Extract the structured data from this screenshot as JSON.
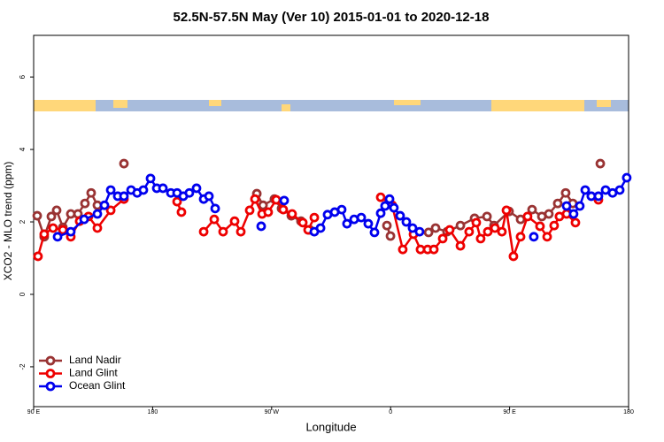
{
  "chart_data": {
    "type": "line",
    "title": "52.5N-57.5N May (Ver 10)   2015-01-01 to 2020-12-18",
    "x_label": "Longitude",
    "y_label": "XCO2 - MLO trend (ppm)",
    "xlim": [
      90,
      540
    ],
    "ylim": [
      -3.1,
      7.15
    ],
    "xticks": [
      {
        "value": 90,
        "label": "90 E"
      },
      180,
      {
        "value": 270,
        "label": "90 W"
      },
      {
        "value": 360,
        "label": "0"
      },
      {
        "value": 450,
        "label": "90 E"
      },
      {
        "value": 540,
        "label": "180"
      }
    ],
    "yticks": [
      -2,
      0,
      2,
      4,
      6
    ],
    "legend": "bottom-left",
    "series": [
      {
        "name": "Land Nadir",
        "color": "#993333",
        "x": [
          92.7,
          98.0,
          103.4,
          107.4,
          112.1,
          118.1,
          123.5,
          128.8,
          133.5,
          138.2,
          null,
          158.3,
          null,
          258.8,
          263.5,
          272.1,
          277.5,
          284.9,
          292.2,
          298.9,
          null,
          357.2,
          359.9,
          null,
          388.7,
          394.0,
          402.7,
          412.8,
          423.5,
          432.9,
          438.2,
          449.6,
          458.3,
          467.0,
          474.4,
          479.7,
          486.4,
          492.4,
          497.8,
          null,
          518.6
        ],
        "values": [
          2.17,
          1.59,
          2.15,
          2.32,
          1.85,
          2.22,
          2.22,
          2.51,
          2.8,
          2.46,
          null,
          3.61,
          null,
          2.78,
          2.46,
          2.63,
          2.37,
          2.17,
          2.02,
          1.78,
          null,
          1.9,
          1.61,
          null,
          1.71,
          1.83,
          1.73,
          1.9,
          2.1,
          2.15,
          1.9,
          2.29,
          2.07,
          2.34,
          2.15,
          2.22,
          2.51,
          2.8,
          2.51,
          null,
          3.61
        ]
      },
      {
        "name": "Land Glint",
        "color": "#ee0000",
        "x": [
          93.3,
          98.0,
          104.7,
          112.1,
          118.1,
          124.8,
          131.5,
          138.2,
          148.3,
          158.3,
          null,
          198.5,
          201.8,
          null,
          218.6,
          226.6,
          233.3,
          242.0,
          246.7,
          253.4,
          257.4,
          262.8,
          267.4,
          273.5,
          278.8,
          285.5,
          293.6,
          297.6,
          302.3,
          null,
          352.5,
          361.2,
          369.2,
          377.3,
          382.6,
          388.0,
          392.7,
          399.4,
          404.7,
          412.8,
          419.4,
          424.8,
          428.1,
          433.5,
          438.9,
          444.2,
          447.6,
          452.9,
          458.3,
          463.6,
          473.0,
          478.4,
          483.7,
          487.7,
          493.1,
          499.8,
          null,
          517.2
        ],
        "values": [
          1.05,
          1.66,
          1.83,
          1.78,
          1.59,
          2.02,
          2.15,
          1.83,
          2.32,
          2.63,
          null,
          2.56,
          2.27,
          null,
          1.73,
          2.07,
          1.73,
          2.02,
          1.73,
          2.32,
          2.63,
          2.22,
          2.27,
          2.61,
          2.34,
          2.22,
          1.98,
          1.78,
          2.12,
          null,
          2.68,
          2.46,
          1.24,
          1.66,
          1.24,
          1.24,
          1.24,
          1.54,
          1.78,
          1.34,
          1.73,
          1.98,
          1.54,
          1.73,
          1.83,
          1.73,
          2.32,
          1.05,
          1.59,
          2.15,
          1.88,
          1.59,
          1.9,
          2.15,
          2.22,
          1.98,
          null,
          2.61
        ]
      },
      {
        "name": "Ocean Glint",
        "color": "#0000ee",
        "x": [
          108.1,
          118.1,
          128.2,
          138.2,
          143.6,
          148.3,
          153.6,
          158.3,
          163.7,
          168.3,
          173.0,
          178.4,
          183.1,
          187.8,
          193.8,
          198.5,
          203.2,
          207.8,
          213.2,
          218.6,
          222.6,
          227.3,
          null,
          262.1,
          null,
          279.5,
          null,
          302.3,
          307.0,
          312.3,
          317.7,
          323.0,
          327.0,
          332.4,
          337.8,
          343.1,
          347.8,
          352.5,
          355.8,
          359.2,
          362.5,
          367.2,
          371.9,
          376.6,
          381.9,
          null,
          468.3,
          null,
          493.1,
          498.4,
          503.1,
          507.2,
          511.8,
          517.2,
          522.6,
          527.9,
          533.3,
          538.6
        ],
        "values": [
          1.59,
          1.73,
          2.07,
          2.22,
          2.46,
          2.88,
          2.71,
          2.71,
          2.88,
          2.8,
          2.88,
          3.2,
          2.93,
          2.93,
          2.8,
          2.8,
          2.71,
          2.8,
          2.93,
          2.63,
          2.71,
          2.37,
          null,
          1.88,
          null,
          2.59,
          null,
          1.73,
          1.83,
          2.2,
          2.27,
          2.34,
          1.95,
          2.07,
          2.12,
          1.95,
          1.71,
          2.24,
          2.44,
          2.63,
          2.39,
          2.17,
          2.0,
          1.83,
          1.73,
          null,
          1.59,
          null,
          2.44,
          2.22,
          2.44,
          2.88,
          2.71,
          2.71,
          2.88,
          2.8,
          2.88,
          3.22
        ]
      }
    ]
  }
}
